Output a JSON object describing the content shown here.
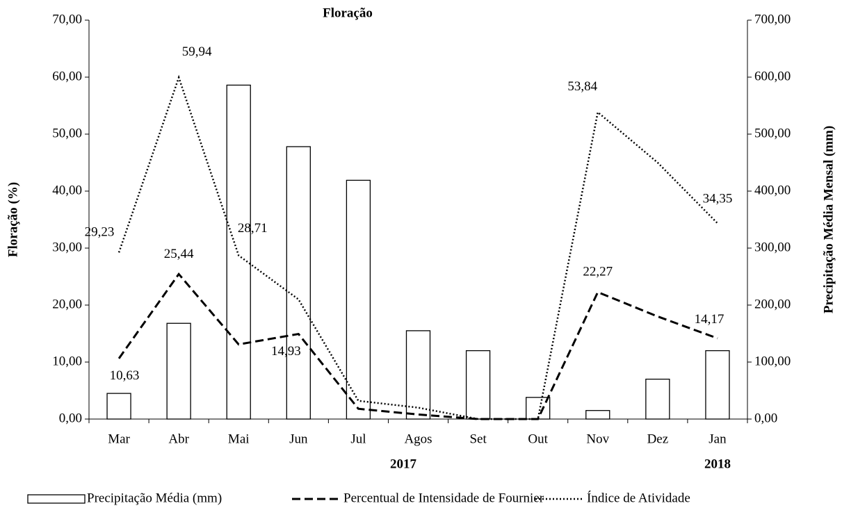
{
  "chart_data": {
    "type": "bar-line",
    "title": "Floração",
    "ylabel": "Floração (%)",
    "y2label": "Precipitação Média Mensal (mm)",
    "annotations": [
      "2017",
      "2018"
    ],
    "categories": [
      "Mar",
      "Abr",
      "Mai",
      "Jun",
      "Jul",
      "Agos",
      "Set",
      "Out",
      "Nov",
      "Dez",
      "Jan"
    ],
    "ylim": [
      0,
      70
    ],
    "yticks": [
      {
        "value": 0,
        "label": "0,00"
      },
      {
        "value": 10,
        "label": "10,00"
      },
      {
        "value": 20,
        "label": "20,00"
      },
      {
        "value": 30,
        "label": "30,00"
      },
      {
        "value": 40,
        "label": "40,00"
      },
      {
        "value": 50,
        "label": "50,00"
      },
      {
        "value": 60,
        "label": "60,00"
      },
      {
        "value": 70,
        "label": "70,00"
      }
    ],
    "y2lim": [
      0,
      700
    ],
    "y2ticks": [
      {
        "value": 0,
        "label": "0,00"
      },
      {
        "value": 100,
        "label": "100,00"
      },
      {
        "value": 200,
        "label": "200,00"
      },
      {
        "value": 300,
        "label": "300,00"
      },
      {
        "value": 400,
        "label": "400,00"
      },
      {
        "value": 500,
        "label": "500,00"
      },
      {
        "value": 600,
        "label": "600,00"
      },
      {
        "value": 700,
        "label": "700,00"
      }
    ],
    "legend": "bottom",
    "series": [
      {
        "name": "Precipitação Média (mm)",
        "type": "bar",
        "axis": "y2",
        "color": "#000000",
        "values": [
          45,
          168,
          586,
          478,
          419,
          155,
          120,
          38,
          15,
          70,
          120
        ]
      },
      {
        "name": "Percentual de Intensidade de Fournier",
        "type": "line",
        "style": "dashed",
        "color": "#000000",
        "values": [
          10.63,
          25.44,
          13.1,
          14.93,
          1.8,
          0.8,
          0,
          0,
          22.27,
          18,
          14.17
        ],
        "value_labels": [
          "10,63",
          "25,44",
          null,
          "14,93",
          null,
          null,
          null,
          null,
          "22,27",
          null,
          "14,17"
        ]
      },
      {
        "name": "Índice de Atividade",
        "type": "line",
        "style": "dotted",
        "color": "#000000",
        "values": [
          29.23,
          59.94,
          28.71,
          21,
          3.2,
          2,
          0,
          0,
          53.84,
          45,
          34.35
        ],
        "value_labels": [
          "29,23",
          "59,94",
          "28,71",
          null,
          null,
          null,
          null,
          null,
          "53,84",
          null,
          "34,35"
        ]
      }
    ]
  }
}
